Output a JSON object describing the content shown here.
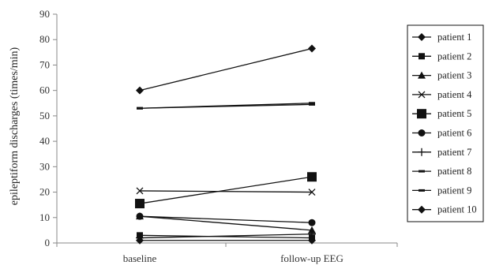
{
  "chart_data": {
    "type": "line",
    "x": [
      "baseline",
      "follow-up EEG"
    ],
    "ylabel": "epileptiform discharges (times/min)",
    "xlabel": "",
    "ylim": [
      0,
      90
    ],
    "yticks": [
      0,
      10,
      20,
      30,
      40,
      50,
      60,
      70,
      80,
      90
    ],
    "grid": false,
    "legend_position": "right",
    "series": [
      {
        "name": "patient 1",
        "marker": "diamond",
        "values": [
          60,
          76.5
        ]
      },
      {
        "name": "patient 2",
        "marker": "square",
        "values": [
          3,
          2
        ]
      },
      {
        "name": "patient 3",
        "marker": "triangle",
        "values": [
          10.5,
          5
        ]
      },
      {
        "name": "patient 4",
        "marker": "x",
        "values": [
          20.5,
          20
        ]
      },
      {
        "name": "patient 5",
        "marker": "bigsquare",
        "values": [
          15.5,
          26
        ]
      },
      {
        "name": "patient 6",
        "marker": "circle",
        "values": [
          10.5,
          8
        ]
      },
      {
        "name": "patient 7",
        "marker": "plus",
        "values": [
          2,
          3.5
        ]
      },
      {
        "name": "patient 8",
        "marker": "dash",
        "values": [
          53,
          55
        ]
      },
      {
        "name": "patient 9",
        "marker": "dash",
        "values": [
          53,
          54.5
        ]
      },
      {
        "name": "patient 10",
        "marker": "diamond",
        "values": [
          1,
          1
        ]
      }
    ]
  }
}
